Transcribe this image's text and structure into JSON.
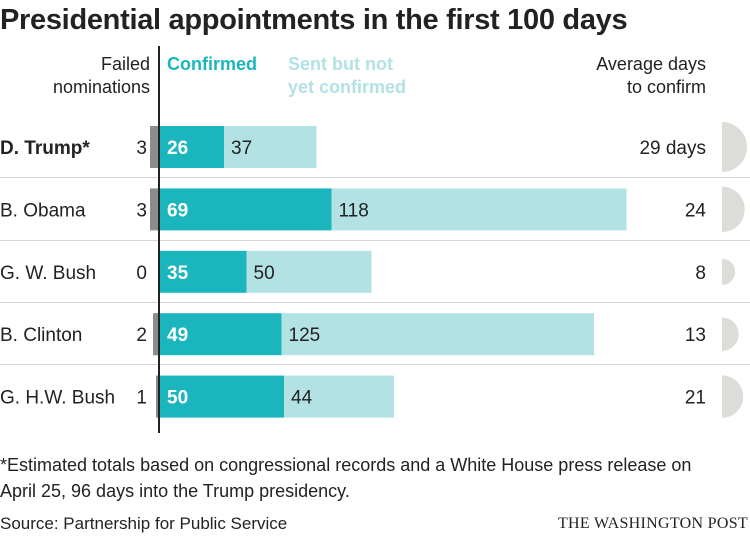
{
  "title": "Presidential appointments in the first 100 days",
  "headers": {
    "failed": [
      "Failed",
      "nominations"
    ],
    "confirmed": "Confirmed",
    "pending": [
      "Sent but not",
      "yet confirmed"
    ],
    "avg": [
      "Average days",
      "to confirm"
    ]
  },
  "colors": {
    "confirmed": "#1bb6bd",
    "pending": "#b3e2e4",
    "failed": "#8c8c8c",
    "semicircle": "#dcdcd8",
    "axis": "#222222"
  },
  "chart_data": {
    "type": "bar",
    "orientation": "horizontal",
    "stacked": true,
    "categories": [
      "D. Trump*",
      "B. Obama",
      "G. W. Bush",
      "B. Clinton",
      "G. H.W. Bush"
    ],
    "highlight": "D. Trump*",
    "series": [
      {
        "name": "Confirmed",
        "values": [
          26,
          69,
          35,
          49,
          50
        ]
      },
      {
        "name": "Sent but not yet confirmed",
        "values": [
          37,
          118,
          50,
          125,
          44
        ]
      }
    ],
    "failed_nominations": [
      3,
      3,
      0,
      2,
      1
    ],
    "average_days_to_confirm": [
      29,
      24,
      8,
      13,
      21
    ],
    "average_days_labels": [
      "29 days",
      "24",
      "8",
      "13",
      "21"
    ]
  },
  "footnote": "*Estimated totals based on congressional records and a White House press release on April 25, 96 days into the Trump presidency.",
  "source": "Source: Partnership for Public Service",
  "brand": "THE WASHINGTON POST"
}
